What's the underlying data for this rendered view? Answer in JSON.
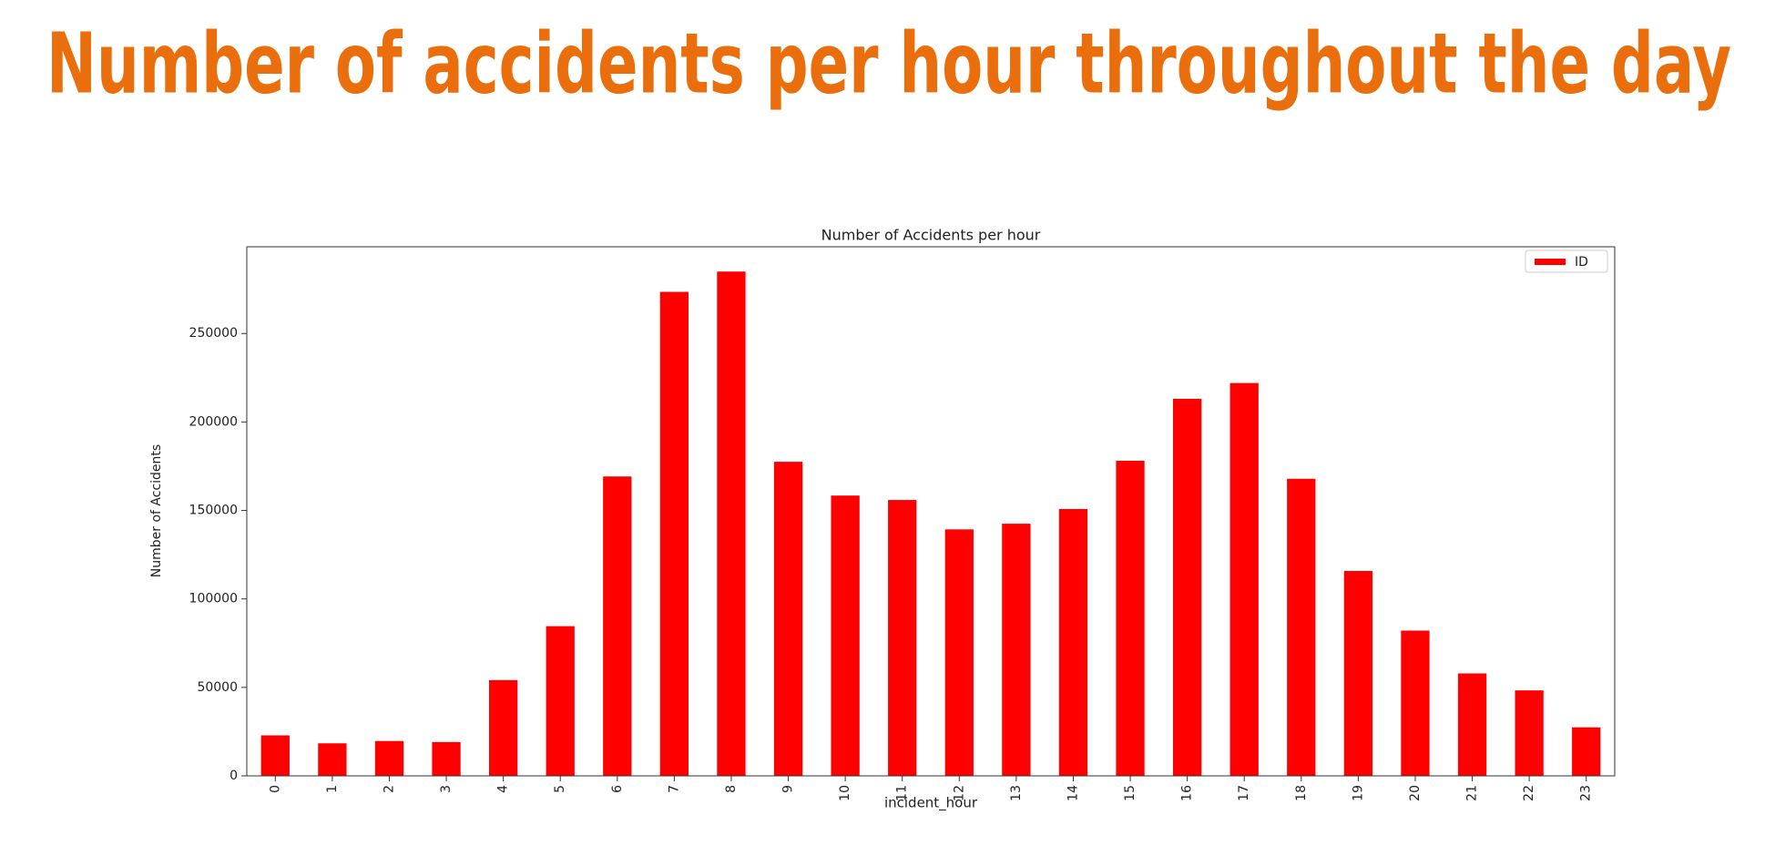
{
  "page_title": "Number of accidents per hour throughout the day",
  "chart_data": {
    "type": "bar",
    "title": "Number of Accidents per hour",
    "x_label": "incident_hour",
    "y_label": "Number of Accidents",
    "categories": [
      "0",
      "1",
      "2",
      "3",
      "4",
      "5",
      "6",
      "7",
      "8",
      "9",
      "10",
      "11",
      "12",
      "13",
      "14",
      "15",
      "16",
      "17",
      "18",
      "19",
      "20",
      "21",
      "22",
      "23"
    ],
    "series": [
      {
        "name": "ID",
        "color": "#ff0000",
        "values": [
          22900,
          18400,
          19700,
          19100,
          54100,
          84600,
          169200,
          273500,
          285000,
          177500,
          158400,
          155900,
          139300,
          142500,
          150800,
          178100,
          213100,
          222000,
          167900,
          115800,
          82100,
          57900,
          48300,
          27400
        ]
      }
    ],
    "ylim": [
      0,
      299000
    ],
    "yticks": [
      0,
      50000,
      100000,
      150000,
      200000,
      250000
    ],
    "legend": "upper right"
  }
}
